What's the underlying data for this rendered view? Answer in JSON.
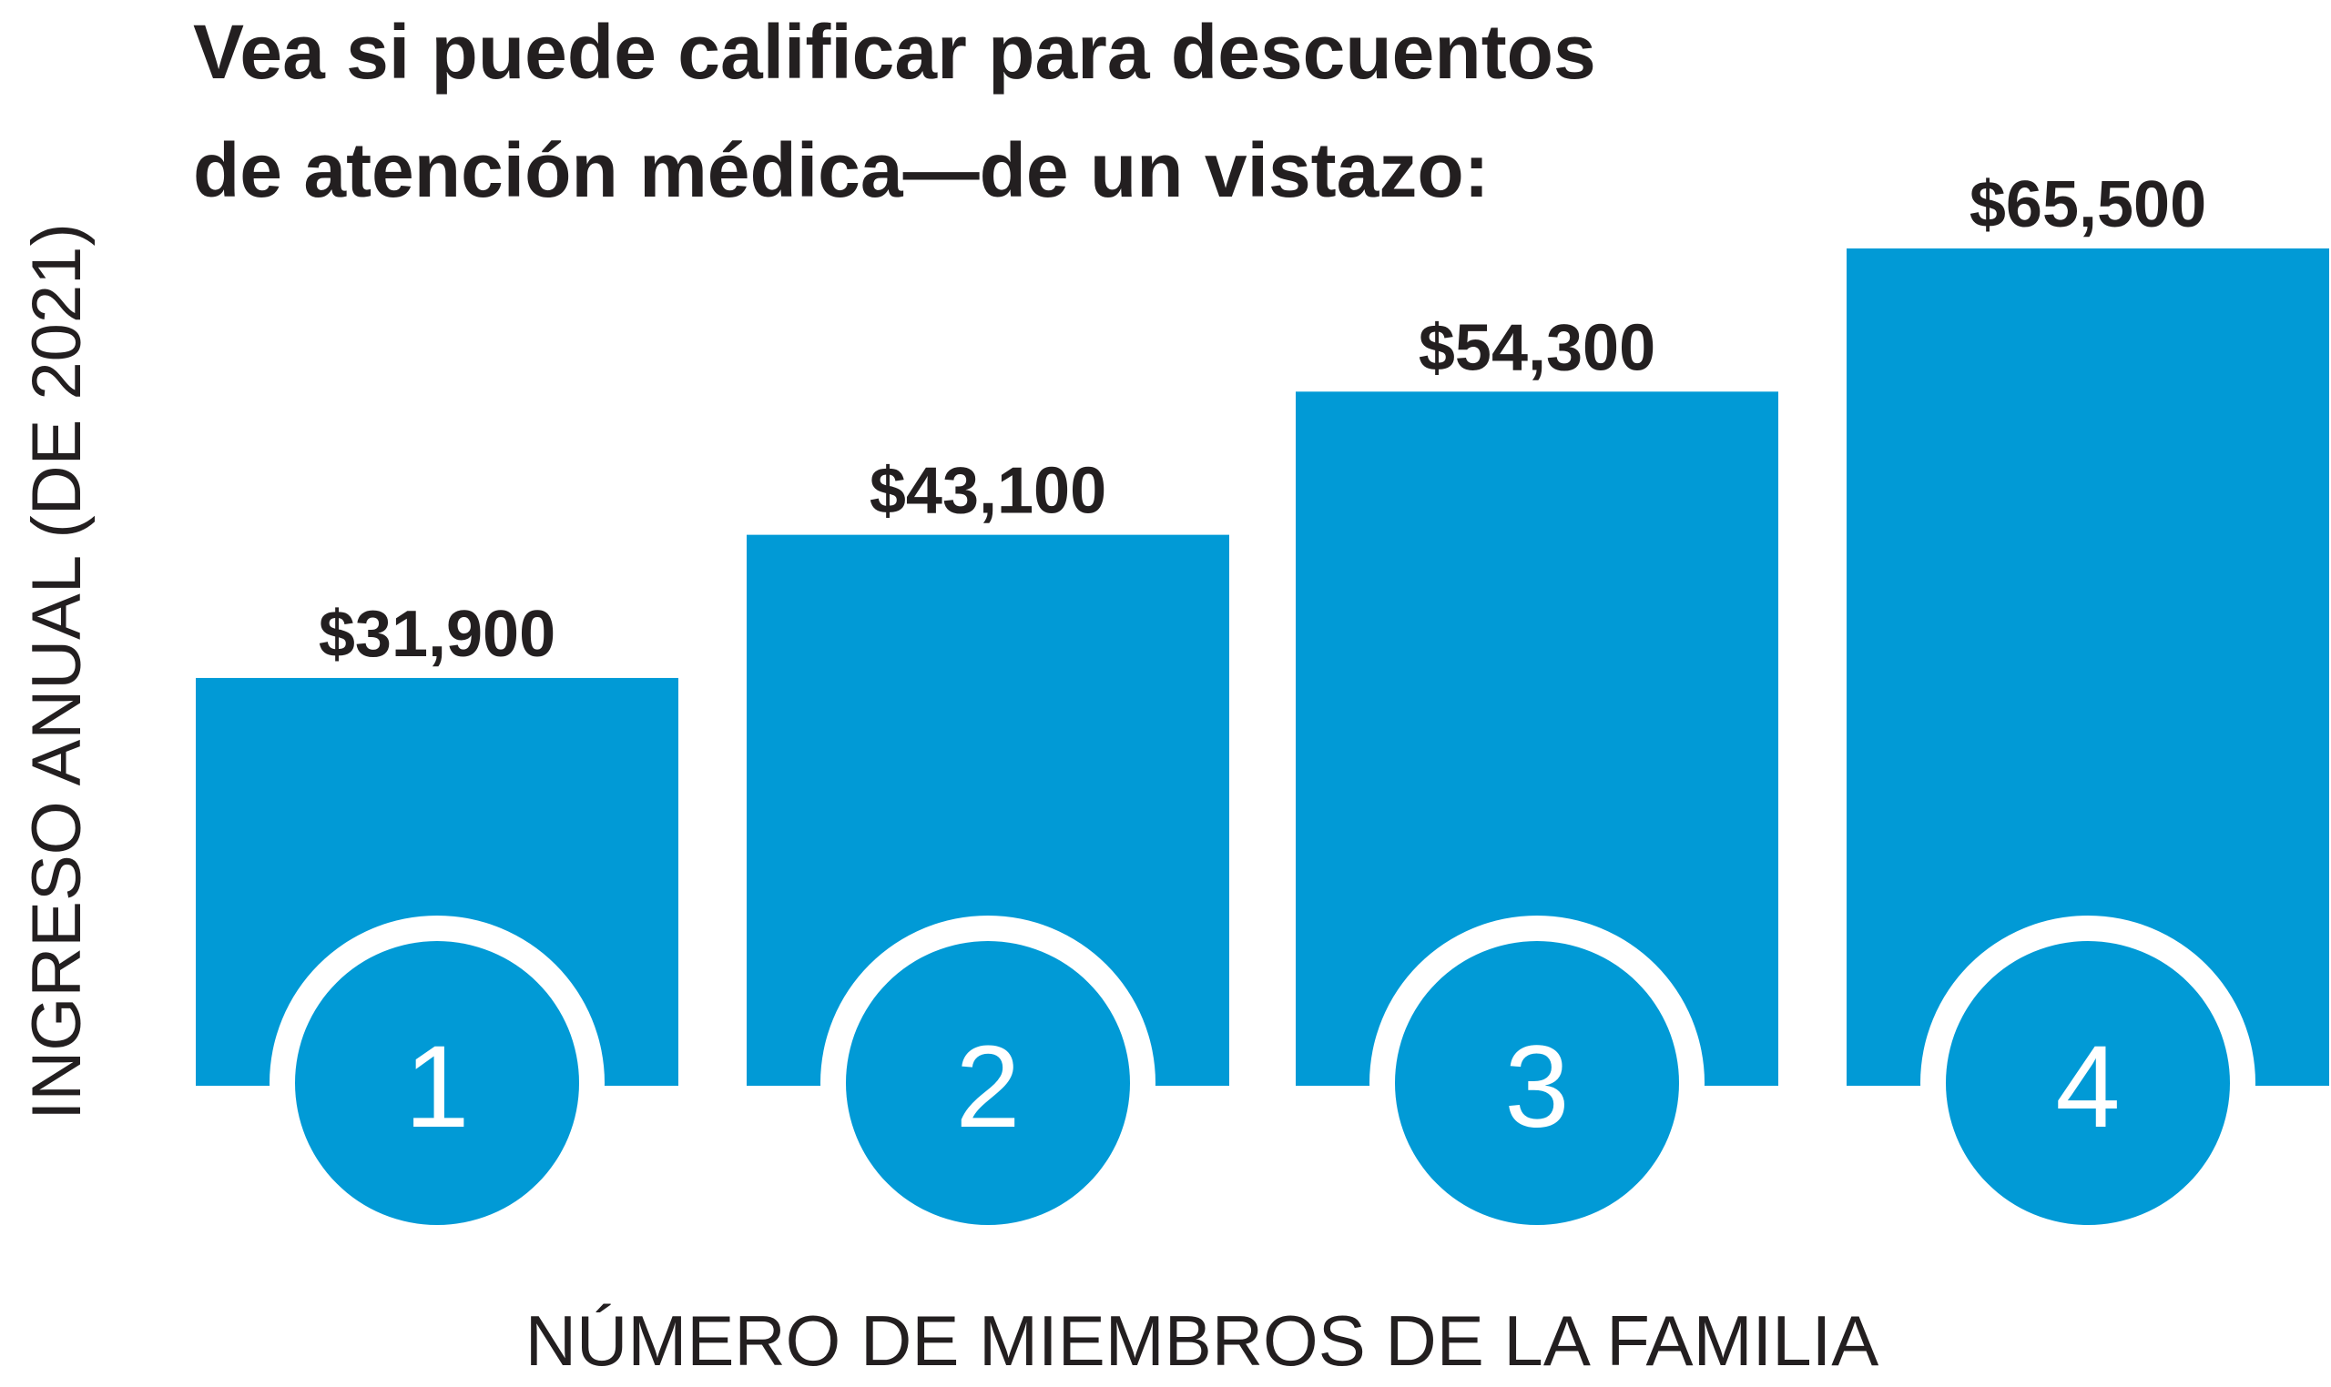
{
  "chart_data": {
    "type": "bar",
    "title_lines": [
      "Vea si puede calificar para descuentos",
      "de atención médica—de un vistazo:"
    ],
    "xlabel": "NÚMERO DE MIEMBROS DE LA FAMILIA",
    "ylabel": "INGRESO ANUAL (DE 2021)",
    "categories": [
      "1",
      "2",
      "3",
      "4"
    ],
    "values": [
      31900,
      43100,
      54300,
      65500
    ],
    "value_labels": [
      "$31,900",
      "$43,100",
      "$54,300",
      "$65,500"
    ],
    "ylim": [
      0,
      65500
    ],
    "grid": false,
    "legend": "none"
  },
  "colors": {
    "bar": "#019ad6",
    "text": "#231f20",
    "category_text": "#ffffff",
    "background": "#ffffff"
  }
}
